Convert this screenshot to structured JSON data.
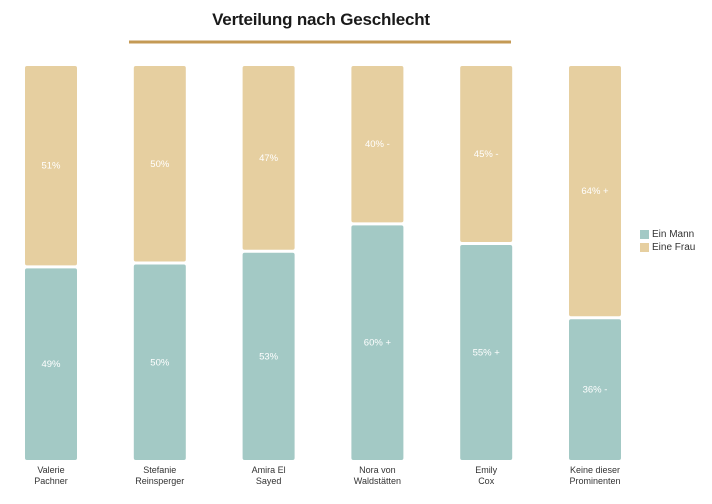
{
  "chart_data": {
    "type": "bar",
    "stacked": true,
    "title": "Verteilung nach Geschlecht",
    "categories": [
      "Valerie Pachner",
      "Stefanie Reinsperger",
      "Amira El Sayed",
      "Nora von Waldstätten",
      "Emily Cox",
      "Keine dieser Prominenten"
    ],
    "series": [
      {
        "name": "Ein Mann",
        "color": "#a3c9c5",
        "values": [
          49,
          50,
          53,
          60,
          55,
          36
        ],
        "labels": [
          "49%",
          "50%",
          "53%",
          "60% +",
          "55% +",
          "36% -"
        ]
      },
      {
        "name": "Eine Frau",
        "color": "#e6cfa0",
        "values": [
          51,
          50,
          47,
          40,
          45,
          64
        ],
        "labels": [
          "51%",
          "50%",
          "47%",
          "40% -",
          "45% -",
          "64% +"
        ]
      }
    ],
    "ylim": [
      0,
      100
    ],
    "grid": false,
    "legend_position": "right",
    "title_underline_color": "#c49a55"
  }
}
